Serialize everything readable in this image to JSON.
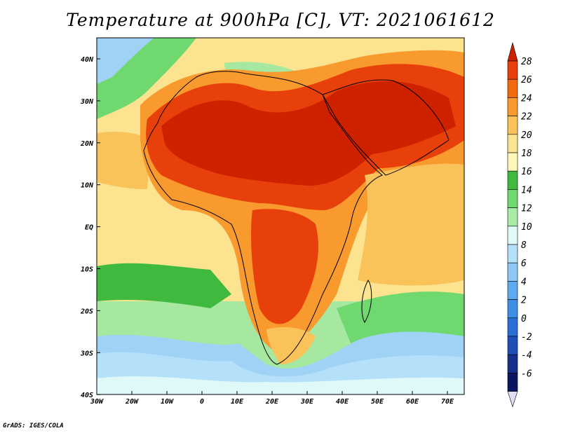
{
  "title": "Temperature at 900hPa [C], VT: 2021061612",
  "credit": "GrADS: IGES/COLA",
  "axes": {
    "lon_ticks": [
      "30W",
      "20W",
      "10W",
      "0",
      "10E",
      "20E",
      "30E",
      "40E",
      "50E",
      "60E",
      "70E"
    ],
    "lat_ticks": [
      "40N",
      "30N",
      "20N",
      "10N",
      "EQ",
      "10S",
      "20S",
      "30S",
      "40S"
    ]
  },
  "colorbar": {
    "labels": [
      "28",
      "26",
      "24",
      "22",
      "20",
      "18",
      "16",
      "14",
      "12",
      "10",
      "8",
      "6",
      "4",
      "2",
      "0",
      "-2",
      "-4",
      "-6"
    ],
    "colors": [
      "#cd2100",
      "#e8400a",
      "#f26a10",
      "#f89a2e",
      "#f9c35a",
      "#fbe38f",
      "#fdf8b8",
      "#3fba3f",
      "#6fd86f",
      "#a8eca8",
      "#dff8f8",
      "#b4e0fa",
      "#8cc8f4",
      "#5eaaf0",
      "#3c8ee6",
      "#2a6fd8",
      "#1c4fb8",
      "#14308a",
      "#0c1660",
      "#e0ddf6"
    ]
  },
  "map_colors": {
    "ocean_south": "#c9ecfa",
    "ocean_mid": "#9fd2f5",
    "ocean_green": "#5cc860",
    "ocean_light_green": "#a6e8a0",
    "warm": "#fbe38f",
    "orange": "#f89a2e",
    "hot": "#e8400a",
    "very_hot": "#cd2100"
  }
}
